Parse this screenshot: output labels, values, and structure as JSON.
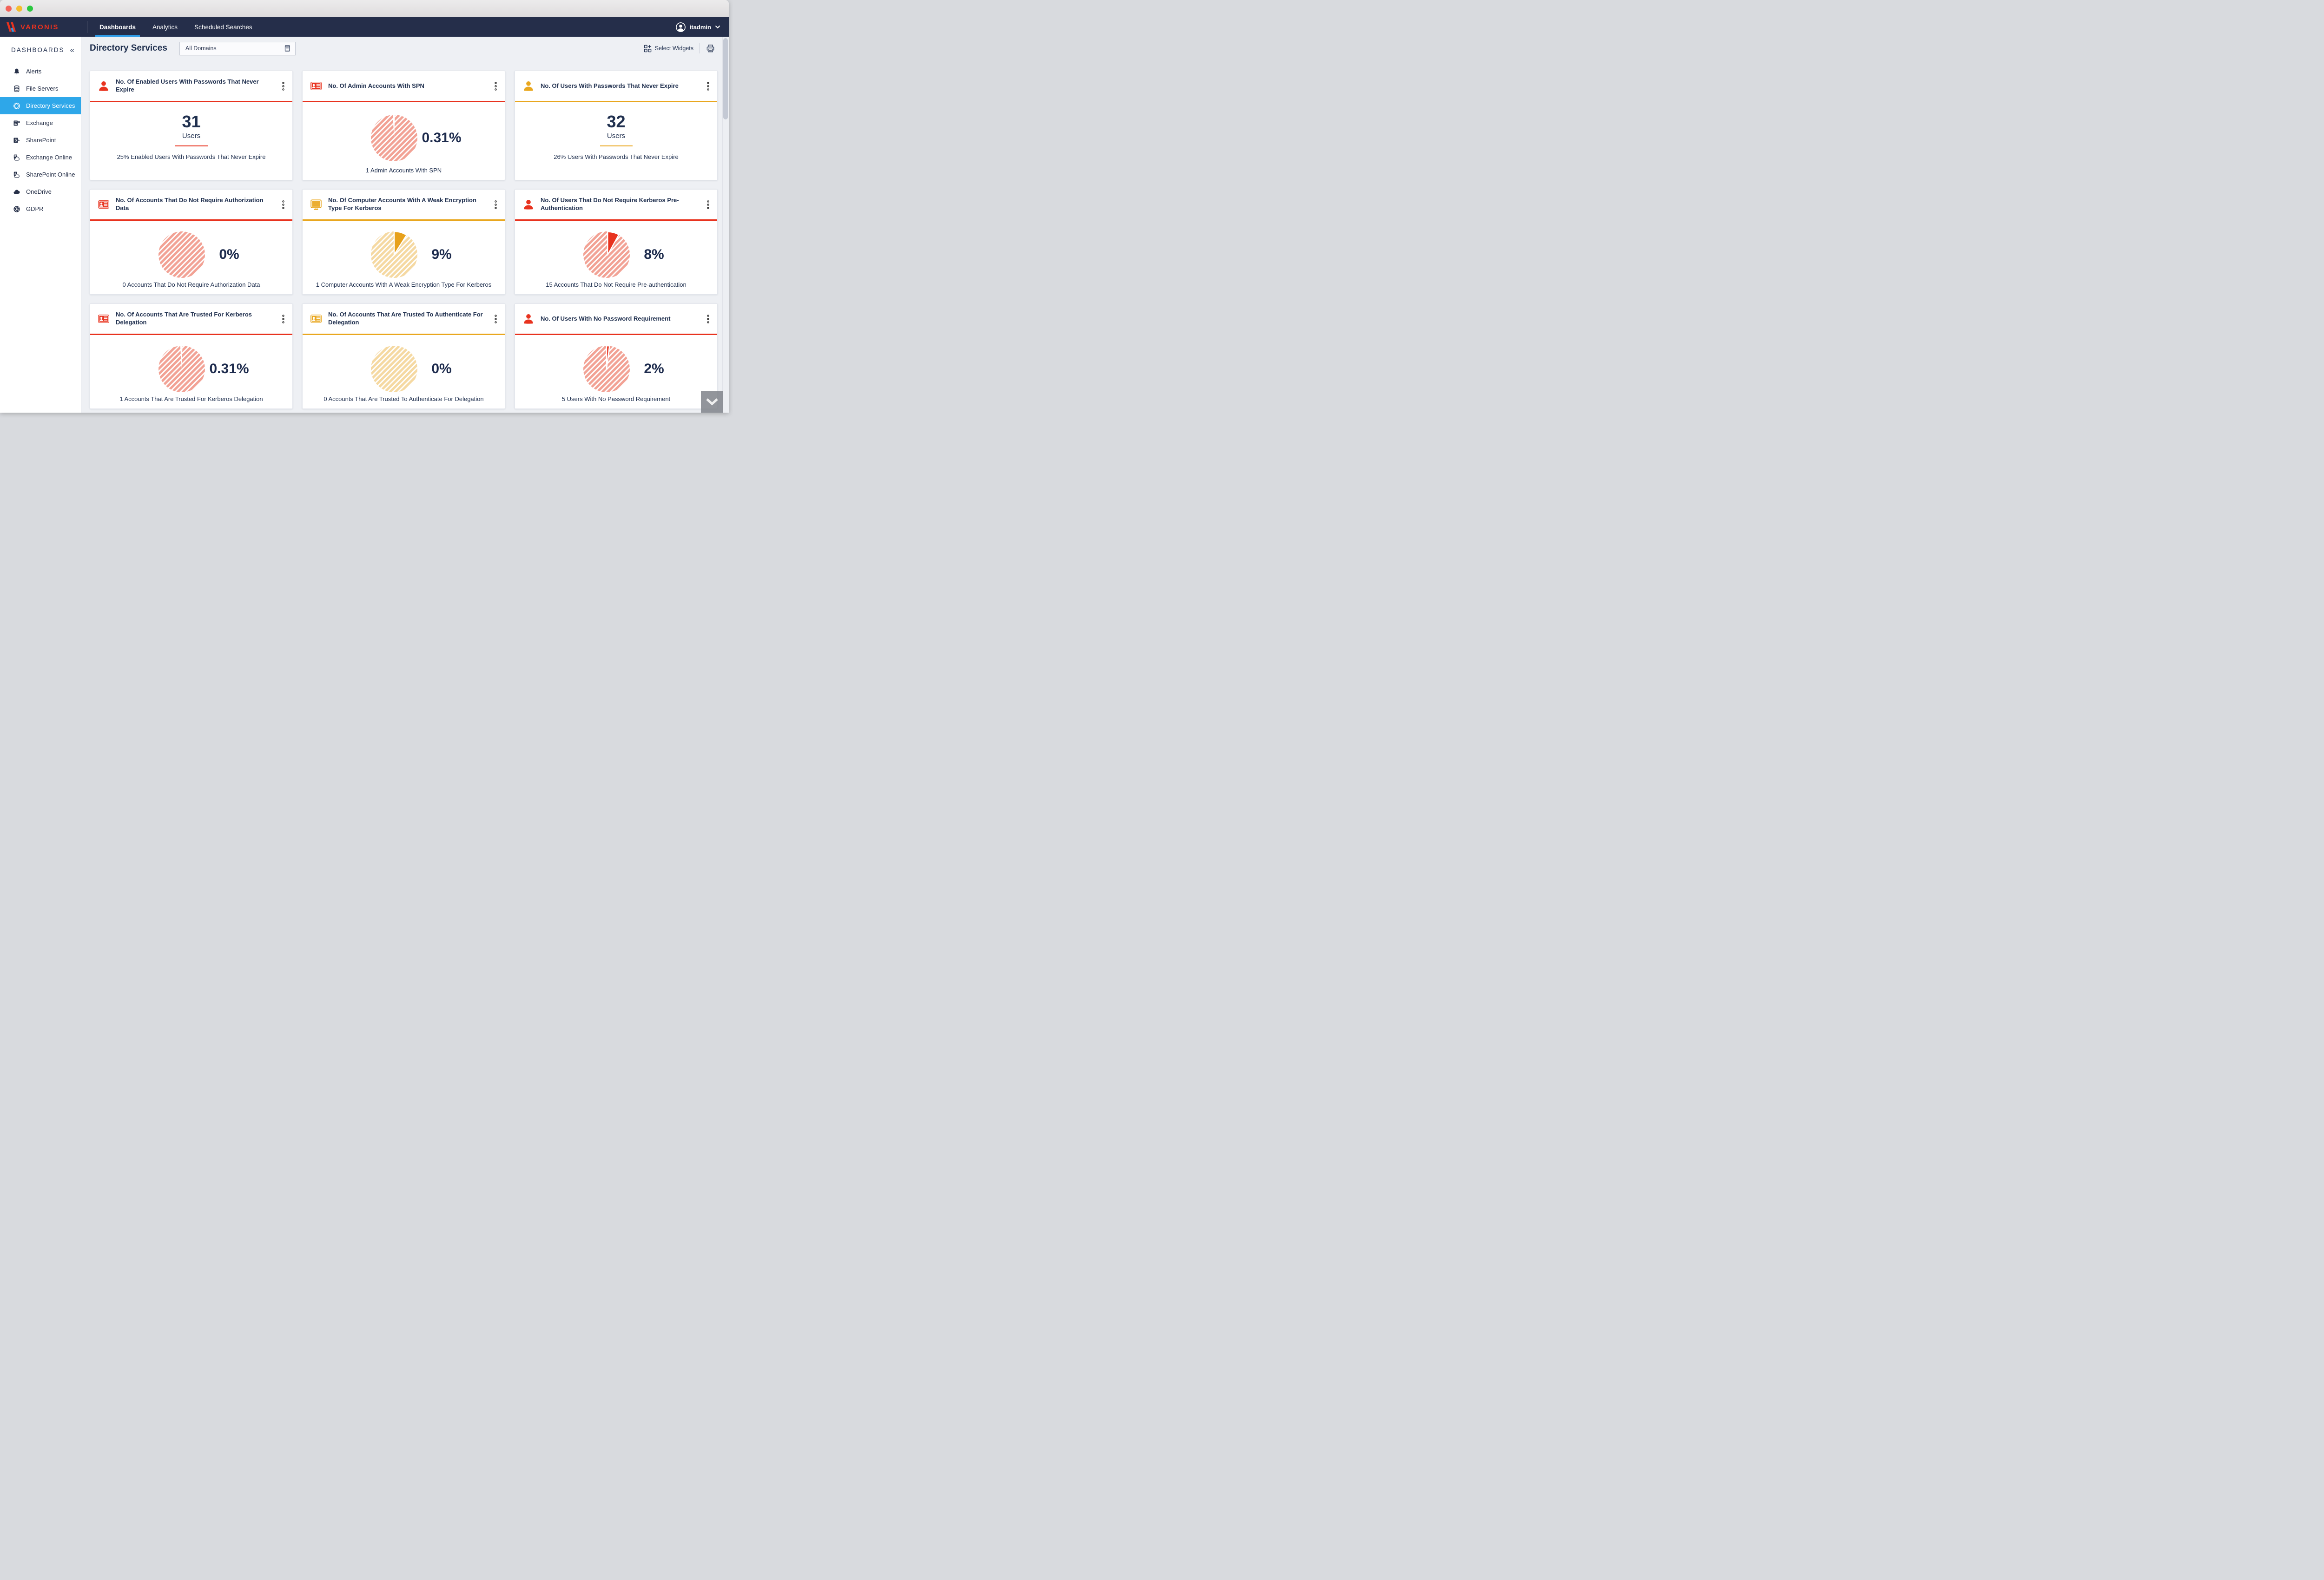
{
  "window": {
    "controls": [
      "close",
      "minimize",
      "maximize"
    ]
  },
  "navbar": {
    "brand": "VARONIS",
    "tabs": [
      {
        "label": "Dashboards",
        "active": true
      },
      {
        "label": "Analytics",
        "active": false
      },
      {
        "label": "Scheduled Searches",
        "active": false
      }
    ],
    "user": {
      "name": "itadmin",
      "icon": "avatar-icon",
      "chevron": "chevron-down-icon"
    }
  },
  "sidebar": {
    "title": "DASHBOARDS",
    "collapse_icon": "«",
    "items": [
      {
        "label": "Alerts",
        "icon": "alerts-bell",
        "active": false
      },
      {
        "label": "File Servers",
        "icon": "file-servers",
        "active": false
      },
      {
        "label": "Directory Services",
        "icon": "directory-services",
        "active": true
      },
      {
        "label": "Exchange",
        "icon": "exchange",
        "active": false
      },
      {
        "label": "SharePoint",
        "icon": "sharepoint",
        "active": false
      },
      {
        "label": "Exchange Online",
        "icon": "exchange-online",
        "active": false
      },
      {
        "label": "SharePoint Online",
        "icon": "sharepoint-online",
        "active": false
      },
      {
        "label": "OneDrive",
        "icon": "onedrive",
        "active": false
      },
      {
        "label": "GDPR",
        "icon": "gdpr",
        "active": false
      }
    ]
  },
  "page": {
    "title": "Directory Services",
    "domain_filter": {
      "value": "All Domains",
      "icon": "domain-journal-icon"
    },
    "toolbar": {
      "select_widgets_label": "Select Widgets",
      "select_widgets_icon": "widget-grid-plus-icon",
      "print_icon": "printer-icon"
    }
  },
  "colors": {
    "accent_red": "#e8331f",
    "accent_yellow": "#e9a71f",
    "navy_text": "#20304f",
    "active_blue": "#2ea7e9",
    "tab_underline": "#2f9ce8",
    "pie_red_fill": "#f2a295",
    "pie_yellow_fill": "#f5d9a2",
    "pie_red_solid": "#e8331f",
    "pie_yellow_solid": "#e7a11b"
  },
  "widgets": [
    {
      "title": "No. Of Enabled Users With Passwords That Never Expire",
      "icon": "user",
      "accent": "red",
      "type": "number",
      "value": "31",
      "unit": "Users",
      "caption": "25% Enabled Users With Passwords That Never Expire"
    },
    {
      "title": "No. Of Admin Accounts With SPN",
      "icon": "id-card",
      "accent": "red",
      "type": "pie",
      "percent_label": "0.31%",
      "pie": {
        "fill": "red",
        "slice_percent": 0.31,
        "slice_style": "gap"
      },
      "caption": "1 Admin Accounts With SPN"
    },
    {
      "title": "No. Of Users With Passwords That Never Expire",
      "icon": "user",
      "accent": "yellow",
      "type": "number",
      "value": "32",
      "unit": "Users",
      "caption": "26% Users With Passwords That Never Expire"
    },
    {
      "title": "No. Of Accounts That Do Not Require Authorization Data",
      "icon": "id-card",
      "accent": "red",
      "type": "pie",
      "percent_label": "0%",
      "pie": {
        "fill": "red",
        "slice_percent": 0,
        "slice_style": "none"
      },
      "caption": "0 Accounts That Do Not Require Authorization Data"
    },
    {
      "title": "No. Of Computer Accounts With A Weak Encryption Type For Kerberos",
      "icon": "monitor",
      "accent": "yellow",
      "type": "pie",
      "percent_label": "9%",
      "pie": {
        "fill": "yellow",
        "slice_percent": 9,
        "slice_style": "solid"
      },
      "caption": "1 Computer Accounts With A Weak Encryption Type For Kerberos"
    },
    {
      "title": "No. Of Users That Do Not Require Kerberos Pre-Authentication",
      "icon": "user",
      "accent": "red",
      "type": "pie",
      "percent_label": "8%",
      "pie": {
        "fill": "red",
        "slice_percent": 8,
        "slice_style": "solid",
        "exploded": true
      },
      "caption": "15 Accounts That Do Not Require Pre-authentication"
    },
    {
      "title": "No. Of Accounts That Are Trusted For Kerberos Delegation",
      "icon": "id-card",
      "accent": "red",
      "type": "pie",
      "percent_label": "0.31%",
      "pie": {
        "fill": "red",
        "slice_percent": 0.31,
        "slice_style": "gap"
      },
      "caption": "1 Accounts That Are Trusted For Kerberos Delegation"
    },
    {
      "title": "No. Of Accounts That Are Trusted To Authenticate For Delegation",
      "icon": "id-card",
      "accent": "yellow",
      "type": "pie",
      "percent_label": "0%",
      "pie": {
        "fill": "yellow",
        "slice_percent": 0,
        "slice_style": "none"
      },
      "caption": "0 Accounts That Are Trusted To Authenticate For Delegation"
    },
    {
      "title": "No. Of Users With No Password Requirement",
      "icon": "user",
      "accent": "red",
      "type": "pie",
      "percent_label": "2%",
      "pie": {
        "fill": "red",
        "slice_percent": 2,
        "slice_style": "solid"
      },
      "caption": "5 Users With No Password Requirement"
    }
  ],
  "scroll": {
    "page_down_icon": "chevron-down-icon"
  }
}
